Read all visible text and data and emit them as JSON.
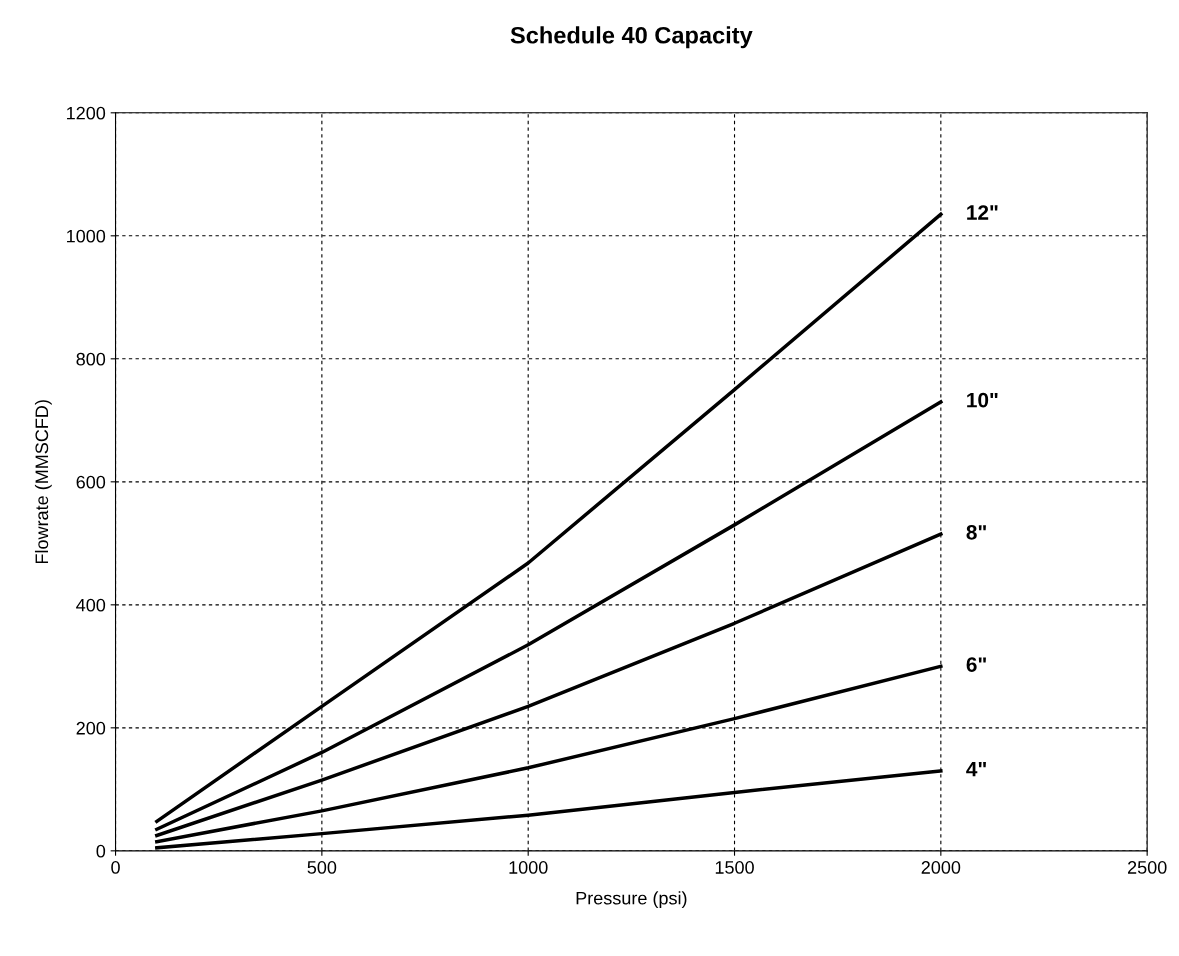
{
  "chart_data": {
    "type": "line",
    "title": "Schedule 40 Capacity",
    "xlabel": "Pressure (psi)",
    "ylabel": "Flowrate (MMSCFD)",
    "x": [
      100,
      500,
      1000,
      1500,
      2000
    ],
    "series": [
      {
        "name": "12\"",
        "color": "#000000",
        "values": [
          48,
          235,
          468,
          750,
          1035
        ]
      },
      {
        "name": "10\"",
        "color": "#000000",
        "values": [
          35,
          160,
          335,
          530,
          730
        ]
      },
      {
        "name": "8\"",
        "color": "#000000",
        "values": [
          25,
          115,
          235,
          370,
          515
        ]
      },
      {
        "name": "6\"",
        "color": "#000000",
        "values": [
          15,
          65,
          135,
          215,
          300
        ]
      },
      {
        "name": "4\"",
        "color": "#000000",
        "values": [
          5,
          28,
          58,
          95,
          130
        ]
      }
    ],
    "xlim": [
      0,
      2500
    ],
    "xticks": [
      0,
      500,
      1000,
      1500,
      2000,
      2500
    ],
    "ylim": [
      0,
      1200
    ],
    "yticks": [
      0,
      200,
      400,
      600,
      800,
      1000,
      1200
    ],
    "grid": true,
    "legend": false,
    "marker": "none",
    "line_style": "solid"
  }
}
